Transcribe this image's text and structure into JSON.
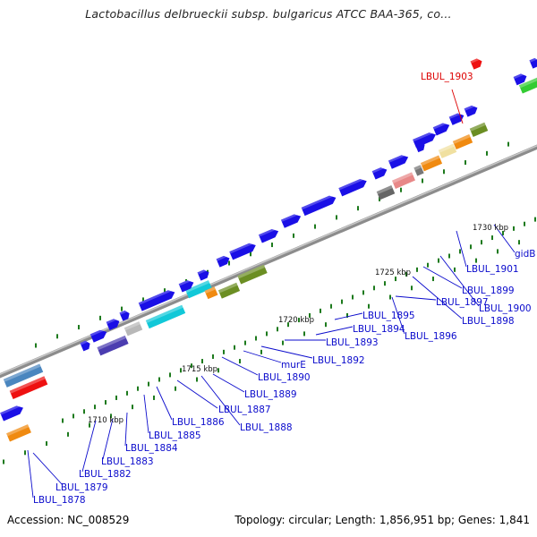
{
  "title": "Lactobacillus delbrueckii subsp. bulgaricus ATCC BAA-365, co...",
  "footer": {
    "accession": "Accession: NC_008529",
    "summary": "Topology: circular; Length: 1,856,951 bp; Genes: 1,841"
  },
  "colors": {
    "backbone": "#8c8c8c",
    "forward_gene": "#1a0fe6",
    "label_blue": "#0a0acc",
    "label_red": "#dd0000",
    "gc_tick": "#1d7a1d"
  },
  "scale_marks": [
    "1710 kbp",
    "1715 kbp",
    "1720 kbp",
    "1725 kbp",
    "1730 kbp"
  ],
  "gene_labels": [
    {
      "text": "LBUL_1878"
    },
    {
      "text": "LBUL_1879"
    },
    {
      "text": "LBUL_1882"
    },
    {
      "text": "LBUL_1883"
    },
    {
      "text": "LBUL_1884"
    },
    {
      "text": "LBUL_1885"
    },
    {
      "text": "LBUL_1886"
    },
    {
      "text": "LBUL_1887"
    },
    {
      "text": "LBUL_1888"
    },
    {
      "text": "LBUL_1889"
    },
    {
      "text": "LBUL_1890"
    },
    {
      "text": "murE"
    },
    {
      "text": "LBUL_1892"
    },
    {
      "text": "LBUL_1893"
    },
    {
      "text": "LBUL_1894"
    },
    {
      "text": "LBUL_1895"
    },
    {
      "text": "LBUL_1896"
    },
    {
      "text": "LBUL_1897"
    },
    {
      "text": "LBUL_1898"
    },
    {
      "text": "LBUL_1899"
    },
    {
      "text": "LBUL_1900"
    },
    {
      "text": "LBUL_1901"
    },
    {
      "text": "gidB"
    },
    {
      "text": "LBUL_1903"
    }
  ]
}
